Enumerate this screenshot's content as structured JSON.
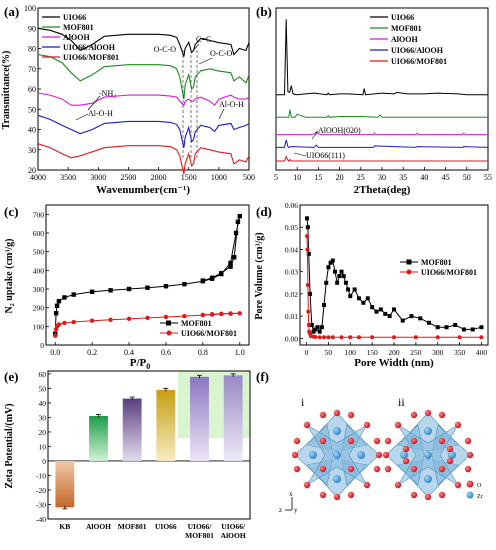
{
  "figure": {
    "panels": {
      "a": {
        "letter": "(a)",
        "chart_type": "line (FTIR spectra, stacked)",
        "xlabel": "Wavenumber(cm⁻¹)",
        "ylabel": "Transmittance(%)",
        "x_ticks": [
          "4000",
          "3500",
          "3000",
          "2500",
          "2000",
          "1500",
          "1000",
          "500"
        ],
        "y_ticks": [
          "20",
          "30",
          "40",
          "50",
          "60",
          "70",
          "80",
          "90",
          "100"
        ],
        "legend": [
          "UIO66",
          "MOF801",
          "AlOOH",
          "UIO66/AlOOH",
          "UIO66/MOF801"
        ],
        "annotations": {
          "nh2": "-NH₂",
          "alohleft": "Al-O-H",
          "oco1": "O-C-O",
          "cc": "C=C",
          "oco2": "O-C-O",
          "alohright": "Al-O-H"
        }
      },
      "b": {
        "letter": "(b)",
        "chart_type": "line (XRD patterns, stacked)",
        "xlabel": "2Theta(deg)",
        "x_ticks": [
          "5",
          "10",
          "15",
          "20",
          "25",
          "30",
          "35",
          "40",
          "45",
          "50",
          "55"
        ],
        "legend": [
          "UIO66",
          "MOF801",
          "AlOOH",
          "UIO66/AlOOH",
          "UIO66/MOF801"
        ],
        "annotations": {
          "alooh020": "AlOOH(020)",
          "uio111": "UIO66(111)"
        }
      },
      "c": {
        "letter": "(c)",
        "chart_type": "line (N2 isotherm)",
        "xlabel": "P/P",
        "xlabel_sub": "0",
        "ylabel": "N₂ uptake (cm³/g)",
        "x_ticks": [
          "0.0",
          "0.2",
          "0.4",
          "0.6",
          "0.8",
          "1.0"
        ],
        "y_ticks": [
          "0",
          "100",
          "200",
          "300",
          "400",
          "500",
          "600",
          "700"
        ],
        "legend": [
          "MOF801",
          "UIO66/MOF801"
        ]
      },
      "d": {
        "letter": "(d)",
        "chart_type": "line (pore size distribution)",
        "xlabel": "Pore Width (nm)",
        "ylabel": "Pore Volume (cm³/g)",
        "x_ticks": [
          "0",
          "50",
          "100",
          "150",
          "200",
          "250",
          "300",
          "350",
          "400"
        ],
        "y_ticks": [
          "0.00",
          "0.01",
          "0.02",
          "0.03",
          "0.04",
          "0.05",
          "0.06"
        ],
        "legend": [
          "MOF801",
          "UIO66/MOF801"
        ]
      },
      "e": {
        "letter": "(e)",
        "chart_type": "bar",
        "ylabel": "Zeta Potential/(mV)",
        "y_ticks": [
          "-40",
          "-30",
          "-20",
          "-10",
          "0",
          "10",
          "20",
          "30",
          "40",
          "50",
          "60"
        ],
        "categories": [
          "KB",
          "AlOOH",
          "MOF801",
          "UIO66",
          "UIO66/\nMOF801",
          "UIO66/\nAlOOH"
        ]
      },
      "f": {
        "letter": "(f)",
        "labels": {
          "i": "i",
          "ii": "ii"
        },
        "legend": {
          "o": "O",
          "zr": "Zr"
        },
        "axes": {
          "x": "x",
          "z": "z",
          "y": "y"
        }
      }
    },
    "colors": {
      "UIO66": "#000000",
      "MOF801": "#1a8c1a",
      "AlOOH": "#d61ad6",
      "UIO66/AlOOH": "#1a1acc",
      "UIO66/MOF801": "#dd1a1a",
      "bar_KB": "#c46a2a",
      "bar_AlOOH": "#1fa84a",
      "bar_MOF801": "#6a4c8c",
      "bar_UIO66": "#c9a21a",
      "bar_UIO66_MOF801": "#9a86c9",
      "bar_UIO66_AlOOH": "#a998cc",
      "highlight": "#d8f5d0"
    }
  },
  "chart_data": [
    {
      "panel": "a",
      "type": "line",
      "xlabel": "Wavenumber(cm⁻¹)",
      "ylabel": "Transmittance(%)",
      "xlim": [
        4000,
        500
      ],
      "ylim": [
        20,
        100
      ],
      "x_reversed": true,
      "series": [
        {
          "name": "UIO66",
          "x": [
            4000,
            3800,
            3600,
            3450,
            3300,
            3100,
            2900,
            2500,
            2000,
            1800,
            1700,
            1650,
            1580,
            1560,
            1500,
            1450,
            1420,
            1390,
            1300,
            1150,
            1020,
            800,
            750,
            660,
            550,
            500
          ],
          "y": [
            90,
            89,
            87,
            84,
            79,
            82,
            86,
            87,
            87,
            86.5,
            85.5,
            82,
            76,
            80,
            83,
            78,
            79,
            82,
            85,
            84,
            83,
            82,
            77,
            80,
            79,
            83
          ]
        },
        {
          "name": "MOF801",
          "x": [
            4000,
            3800,
            3600,
            3450,
            3300,
            3100,
            2900,
            2500,
            2000,
            1800,
            1700,
            1650,
            1580,
            1560,
            1500,
            1450,
            1420,
            1390,
            1300,
            1150,
            1020,
            800,
            750,
            660,
            550,
            500
          ],
          "y": [
            77,
            76,
            73,
            68,
            64,
            67,
            71,
            72,
            72,
            71.5,
            70,
            66,
            55,
            62,
            67,
            60,
            61,
            66,
            69,
            70,
            69,
            68,
            64,
            66,
            63,
            67
          ]
        },
        {
          "name": "AlOOH",
          "x": [
            4000,
            3800,
            3600,
            3450,
            3300,
            3100,
            2900,
            2500,
            2000,
            1800,
            1700,
            1650,
            1580,
            1560,
            1500,
            1450,
            1420,
            1390,
            1300,
            1150,
            1070,
            1000,
            800,
            750,
            660,
            550,
            500
          ],
          "y": [
            58,
            57,
            55,
            52,
            52,
            53,
            56,
            57,
            57,
            56.5,
            56,
            54,
            52,
            54,
            55,
            54,
            54,
            55,
            56,
            54,
            52,
            55,
            57,
            56,
            55,
            55,
            56
          ]
        },
        {
          "name": "UIO66/AlOOH",
          "x": [
            4000,
            3800,
            3600,
            3450,
            3300,
            3100,
            2900,
            2500,
            2000,
            1800,
            1700,
            1650,
            1580,
            1560,
            1500,
            1450,
            1420,
            1390,
            1300,
            1150,
            1070,
            1000,
            800,
            750,
            660,
            550,
            500
          ],
          "y": [
            47,
            45,
            42,
            40,
            38,
            40,
            43,
            44,
            44,
            43.5,
            42.5,
            40,
            31,
            36,
            41,
            34,
            35,
            39,
            42,
            41,
            39,
            42,
            43,
            40,
            41,
            42,
            43
          ]
        },
        {
          "name": "UIO66/MOF801",
          "x": [
            4000,
            3800,
            3600,
            3450,
            3300,
            3100,
            2900,
            2500,
            2000,
            1800,
            1700,
            1650,
            1580,
            1560,
            1500,
            1450,
            1420,
            1390,
            1300,
            1150,
            1020,
            800,
            750,
            660,
            550,
            500
          ],
          "y": [
            33,
            31,
            28,
            26,
            27,
            29,
            31,
            32,
            32,
            31.5,
            30,
            27,
            18,
            23,
            28,
            22,
            23,
            28,
            31,
            30,
            29,
            28,
            23,
            25,
            24,
            27
          ]
        }
      ]
    },
    {
      "panel": "b",
      "type": "line",
      "xlabel": "2Theta(deg)",
      "xlim": [
        5,
        55
      ],
      "series": [
        {
          "name": "UIO66",
          "x": [
            5,
            7,
            7.4,
            7.8,
            8.2,
            8.6,
            9,
            10,
            12,
            14,
            17,
            17.3,
            17.6,
            20,
            22,
            25.5,
            25.8,
            26.1,
            30,
            33,
            33.4,
            36,
            40,
            43,
            48,
            50,
            55
          ],
          "y": [
            100,
            100,
            200,
            104,
            103,
            112,
            101,
            100,
            101,
            102,
            100,
            102,
            100,
            101,
            101,
            100,
            108,
            100,
            102,
            101,
            103,
            101,
            101,
            102,
            101,
            100,
            100
          ]
        },
        {
          "name": "MOF801",
          "x": [
            5,
            8,
            8.3,
            8.6,
            9.5,
            10,
            12,
            14,
            17,
            17.3,
            17.6,
            20,
            25,
            29,
            29.5,
            30,
            35,
            40,
            45,
            50,
            55
          ],
          "y": [
            70,
            70,
            80,
            70,
            70,
            74,
            70,
            70,
            70,
            72,
            70,
            71,
            71,
            70,
            73,
            70,
            70,
            70,
            70,
            70,
            70
          ]
        },
        {
          "name": "AlOOH",
          "x": [
            5,
            13,
            14.2,
            14.5,
            14.8,
            16,
            28,
            28.2,
            28.5,
            38,
            38.3,
            38.6,
            49,
            49.3,
            49.6,
            55
          ],
          "y": [
            47,
            47,
            48,
            51,
            48,
            47,
            47,
            49,
            47,
            47,
            49,
            47,
            47,
            49,
            47,
            47
          ]
        },
        {
          "name": "UIO66/AlOOH",
          "x": [
            5,
            7,
            7.4,
            7.8,
            8,
            8.6,
            14,
            14.5,
            15,
            28,
            28.3,
            38,
            38.3,
            49,
            49.3,
            55
          ],
          "y": [
            30,
            30,
            40,
            31,
            30,
            31,
            30,
            33,
            30,
            30,
            32,
            30,
            31,
            30,
            31,
            30
          ]
        },
        {
          "name": "UIO66/MOF801",
          "x": [
            5,
            7,
            7.4,
            7.8,
            8,
            8.3,
            8.6,
            10,
            15,
            20,
            25,
            30,
            35,
            40,
            45,
            50,
            55
          ],
          "y": [
            12,
            12,
            18,
            13,
            12,
            14,
            12,
            12,
            12,
            12,
            12,
            12,
            12,
            12,
            12,
            12,
            12
          ]
        }
      ]
    },
    {
      "panel": "c",
      "type": "line",
      "xlabel": "P/P0",
      "ylabel": "N₂ uptake (cm³/g)",
      "xlim": [
        -0.05,
        1.05
      ],
      "ylim": [
        0,
        750
      ],
      "series": [
        {
          "name": "MOF801",
          "x": [
            0.0,
            0.005,
            0.01,
            0.02,
            0.05,
            0.1,
            0.2,
            0.3,
            0.4,
            0.5,
            0.6,
            0.7,
            0.8,
            0.85,
            0.9,
            0.95,
            0.98,
            1.0,
            0.99,
            0.97,
            0.95,
            0.9,
            0.85,
            0.8
          ],
          "y": [
            60,
            170,
            210,
            235,
            255,
            270,
            285,
            293,
            300,
            307,
            315,
            326,
            342,
            355,
            380,
            440,
            600,
            690,
            660,
            470,
            420,
            385,
            360,
            345
          ]
        },
        {
          "name": "UIO66/MOF801",
          "x": [
            0.0,
            0.005,
            0.01,
            0.02,
            0.05,
            0.1,
            0.2,
            0.3,
            0.4,
            0.5,
            0.6,
            0.7,
            0.8,
            0.85,
            0.9,
            0.95,
            1.0,
            0.95,
            0.9,
            0.85,
            0.8
          ],
          "y": [
            50,
            85,
            100,
            110,
            118,
            123,
            130,
            135,
            140,
            145,
            150,
            155,
            160,
            163,
            166,
            168,
            170,
            169,
            167,
            165,
            161
          ]
        }
      ]
    },
    {
      "panel": "d",
      "type": "line",
      "xlabel": "Pore Width (nm)",
      "ylabel": "Pore Volume (cm³/g)",
      "xlim": [
        -15,
        415
      ],
      "ylim": [
        -0.003,
        0.06
      ],
      "series": [
        {
          "name": "MOF801",
          "x": [
            1,
            3,
            5,
            8,
            12,
            16,
            20,
            25,
            30,
            35,
            40,
            45,
            50,
            55,
            60,
            65,
            70,
            75,
            80,
            85,
            90,
            95,
            100,
            110,
            120,
            130,
            140,
            150,
            160,
            170,
            180,
            190,
            200,
            220,
            240,
            260,
            280,
            300,
            320,
            340,
            360,
            380,
            400
          ],
          "y": [
            0.054,
            0.05,
            0.038,
            0.02,
            0.006,
            0.003,
            0.004,
            0.005,
            0.003,
            0.005,
            0.015,
            0.025,
            0.032,
            0.034,
            0.035,
            0.03,
            0.025,
            0.028,
            0.03,
            0.028,
            0.025,
            0.022,
            0.019,
            0.022,
            0.018,
            0.016,
            0.018,
            0.014,
            0.012,
            0.013,
            0.011,
            0.01,
            0.013,
            0.008,
            0.01,
            0.009,
            0.007,
            0.005,
            0.005,
            0.006,
            0.004,
            0.004,
            0.005
          ]
        },
        {
          "name": "UIO66/MOF801",
          "x": [
            1,
            2,
            3,
            4,
            5,
            6,
            8,
            10,
            15,
            20,
            30,
            40,
            50,
            60,
            80,
            100,
            120,
            150,
            200,
            250,
            300,
            350,
            400
          ],
          "y": [
            0.046,
            0.04,
            0.024,
            0.012,
            0.006,
            0.003,
            0.002,
            0.001,
            0.0008,
            0.0006,
            0.0005,
            0.0005,
            0.0005,
            0.0005,
            0.0005,
            0.0005,
            0.0005,
            0.0005,
            0.0005,
            0.0005,
            0.0005,
            0.0005,
            0.0005
          ]
        }
      ]
    },
    {
      "panel": "e",
      "type": "bar",
      "ylabel": "Zeta Potential/(mV)",
      "ylim": [
        -40,
        62
      ],
      "categories": [
        "KB",
        "AlOOH",
        "MOF801",
        "UIO66",
        "UIO66/MOF801",
        "UIO66/AlOOH"
      ],
      "values": [
        -32,
        31,
        43,
        49,
        58,
        59
      ]
    }
  ]
}
